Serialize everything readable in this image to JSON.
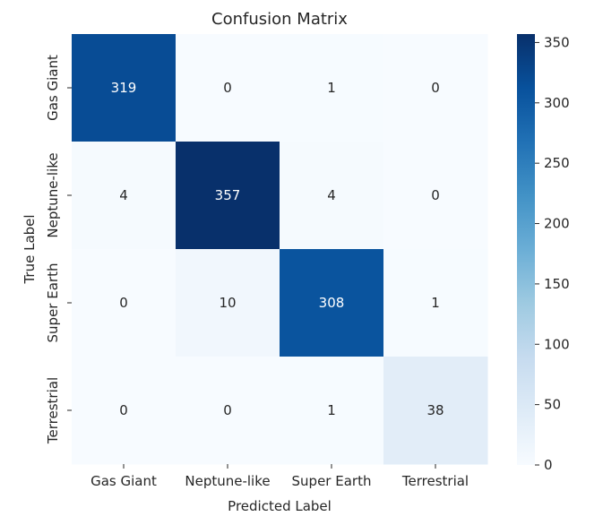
{
  "chart_data": {
    "type": "heatmap",
    "title": "Confusion Matrix",
    "xlabel": "Predicted Label",
    "ylabel": "True Label",
    "x_categories": [
      "Gas Giant",
      "Neptune-like",
      "Super Earth",
      "Terrestrial"
    ],
    "y_categories": [
      "Gas Giant",
      "Neptune-like",
      "Super Earth",
      "Terrestrial"
    ],
    "values": [
      [
        319,
        0,
        1,
        0
      ],
      [
        4,
        357,
        4,
        0
      ],
      [
        0,
        10,
        308,
        1
      ],
      [
        0,
        0,
        1,
        38
      ]
    ],
    "colormap": "Blues",
    "colorbar": {
      "min": 0,
      "max": 357,
      "ticks": [
        0,
        50,
        100,
        150,
        200,
        250,
        300,
        350
      ]
    },
    "grid": false,
    "legend": "colorbar-right"
  }
}
